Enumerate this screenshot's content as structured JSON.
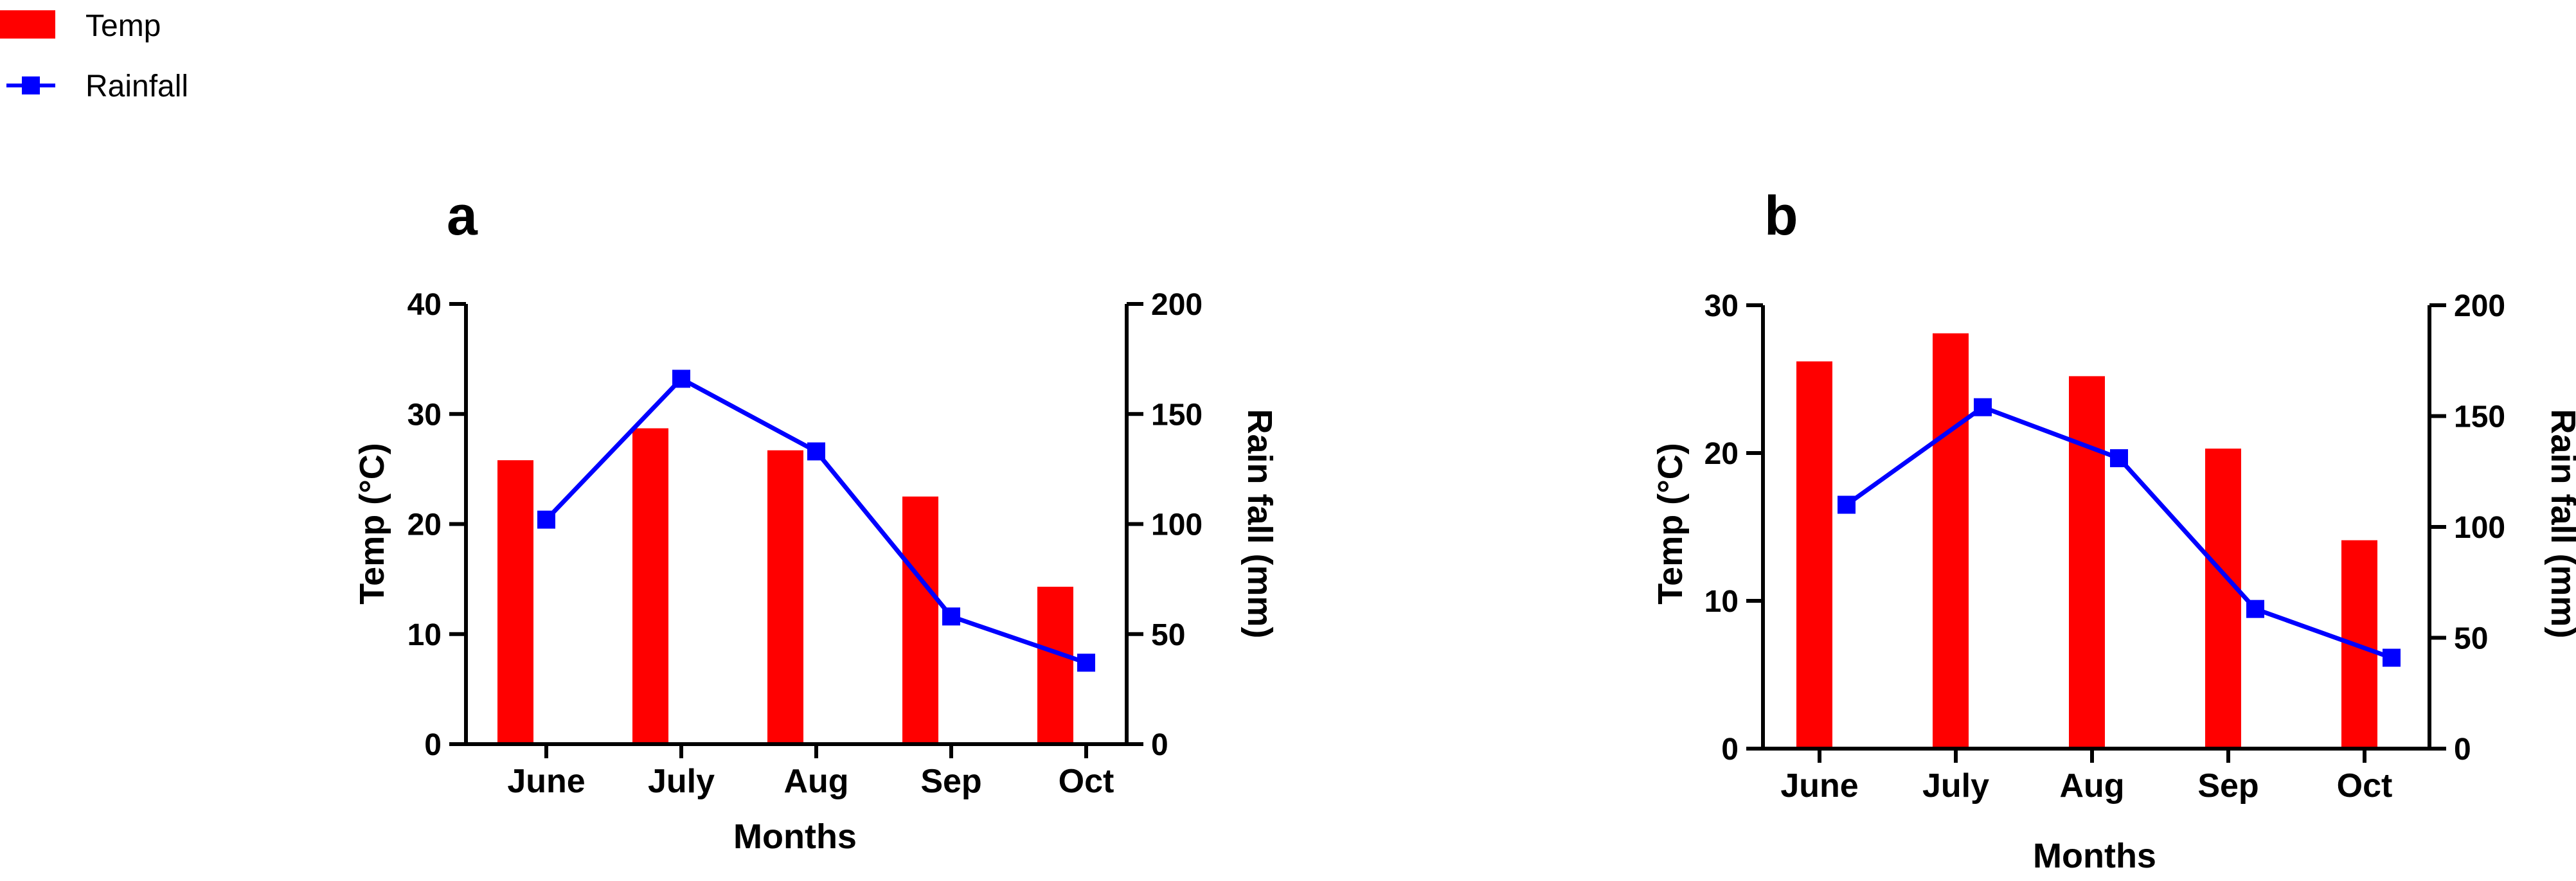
{
  "legend": {
    "items": [
      {
        "label": "Temp",
        "color": "#ff0000",
        "marker": "bar"
      },
      {
        "label": "Rainfall",
        "color": "#0000ff",
        "marker": "line-square"
      }
    ]
  },
  "colors": {
    "temp": "#ff0000",
    "rainfall": "#0000ff",
    "axis": "#000000"
  },
  "chart_data": [
    {
      "panel_label": "a",
      "type": "bar+line",
      "categories": [
        "June",
        "July",
        "Aug",
        "Sep",
        "Oct"
      ],
      "xlabel": "Months",
      "ylabel_left": "Temp (°C)",
      "ylabel_right": "Rain fall (mm)",
      "ylim_left": [
        0,
        40
      ],
      "ylim_right": [
        0,
        200
      ],
      "yticks_left": [
        0,
        10,
        20,
        30,
        40
      ],
      "yticks_right": [
        0,
        50,
        100,
        150,
        200
      ],
      "series": [
        {
          "name": "Temp",
          "type": "bar",
          "axis": "left",
          "values": [
            25.8,
            28.7,
            26.7,
            22.5,
            14.3
          ]
        },
        {
          "name": "Rainfall",
          "type": "line",
          "axis": "right",
          "values": [
            102,
            166,
            133,
            58,
            37
          ]
        }
      ]
    },
    {
      "panel_label": "b",
      "type": "bar+line",
      "categories": [
        "June",
        "July",
        "Aug",
        "Sep",
        "Oct"
      ],
      "xlabel": "Months",
      "ylabel_left": "Temp (°C)",
      "ylabel_right": "Rain fall (mm)",
      "ylim_left": [
        0,
        30
      ],
      "ylim_right": [
        0,
        200
      ],
      "yticks_left": [
        0,
        10,
        20,
        30
      ],
      "yticks_right": [
        0,
        50,
        100,
        150,
        200
      ],
      "series": [
        {
          "name": "Temp",
          "type": "bar",
          "axis": "left",
          "values": [
            26.2,
            28.1,
            25.2,
            20.3,
            14.1
          ]
        },
        {
          "name": "Rainfall",
          "type": "line",
          "axis": "right",
          "values": [
            110,
            154,
            131,
            63,
            41
          ]
        }
      ]
    }
  ]
}
